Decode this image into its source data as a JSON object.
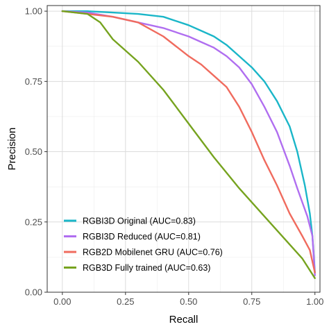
{
  "chart_data": {
    "type": "line",
    "title": "",
    "xlabel": "Recall",
    "ylabel": "Precision",
    "xlim": [
      -0.06,
      1.02
    ],
    "ylim": [
      0.0,
      1.02
    ],
    "x_ticks": [
      0.0,
      0.25,
      0.5,
      0.75,
      1.0
    ],
    "x_tick_labels": [
      "0.00",
      "0.25",
      "0.50",
      "0.75",
      "1.00"
    ],
    "y_ticks": [
      0.0,
      0.25,
      0.5,
      0.75,
      1.0
    ],
    "y_tick_labels": [
      "0.00",
      "0.25",
      "0.50",
      "0.75",
      "1.00"
    ],
    "grid": true,
    "legend_position": "bottom-left",
    "series": [
      {
        "name": "RGBI3D Original (AUC=0.83)",
        "color": "#1ab6c8",
        "points": [
          [
            0.0,
            1.0
          ],
          [
            0.1,
            1.0
          ],
          [
            0.2,
            0.995
          ],
          [
            0.3,
            0.99
          ],
          [
            0.4,
            0.98
          ],
          [
            0.5,
            0.95
          ],
          [
            0.55,
            0.93
          ],
          [
            0.6,
            0.91
          ],
          [
            0.65,
            0.88
          ],
          [
            0.7,
            0.84
          ],
          [
            0.75,
            0.8
          ],
          [
            0.8,
            0.75
          ],
          [
            0.85,
            0.68
          ],
          [
            0.9,
            0.59
          ],
          [
            0.93,
            0.5
          ],
          [
            0.96,
            0.38
          ],
          [
            0.98,
            0.28
          ],
          [
            0.99,
            0.2
          ],
          [
            1.0,
            0.07
          ]
        ]
      },
      {
        "name": "RGBI3D Reduced (AUC=0.81)",
        "color": "#b06ef0",
        "points": [
          [
            0.0,
            1.0
          ],
          [
            0.1,
            0.995
          ],
          [
            0.2,
            0.98
          ],
          [
            0.3,
            0.96
          ],
          [
            0.4,
            0.94
          ],
          [
            0.5,
            0.91
          ],
          [
            0.55,
            0.89
          ],
          [
            0.6,
            0.87
          ],
          [
            0.65,
            0.84
          ],
          [
            0.7,
            0.8
          ],
          [
            0.75,
            0.74
          ],
          [
            0.8,
            0.66
          ],
          [
            0.85,
            0.57
          ],
          [
            0.9,
            0.45
          ],
          [
            0.93,
            0.37
          ],
          [
            0.95,
            0.32
          ],
          [
            0.97,
            0.27
          ],
          [
            0.99,
            0.2
          ],
          [
            1.0,
            0.06
          ]
        ]
      },
      {
        "name": "RGB2D Mobilenet GRU (AUC=0.76)",
        "color": "#f06b5e",
        "points": [
          [
            0.0,
            1.0
          ],
          [
            0.1,
            0.99
          ],
          [
            0.2,
            0.98
          ],
          [
            0.3,
            0.96
          ],
          [
            0.4,
            0.91
          ],
          [
            0.5,
            0.84
          ],
          [
            0.55,
            0.81
          ],
          [
            0.6,
            0.77
          ],
          [
            0.65,
            0.73
          ],
          [
            0.7,
            0.66
          ],
          [
            0.75,
            0.57
          ],
          [
            0.8,
            0.47
          ],
          [
            0.85,
            0.38
          ],
          [
            0.9,
            0.28
          ],
          [
            0.95,
            0.2
          ],
          [
            0.98,
            0.15
          ],
          [
            1.0,
            0.07
          ]
        ]
      },
      {
        "name": "RGB3D Fully trained (AUC=0.63)",
        "color": "#76a31f",
        "points": [
          [
            0.0,
            1.0
          ],
          [
            0.1,
            0.99
          ],
          [
            0.15,
            0.96
          ],
          [
            0.2,
            0.9
          ],
          [
            0.3,
            0.82
          ],
          [
            0.4,
            0.72
          ],
          [
            0.5,
            0.6
          ],
          [
            0.6,
            0.48
          ],
          [
            0.7,
            0.37
          ],
          [
            0.8,
            0.27
          ],
          [
            0.9,
            0.17
          ],
          [
            0.95,
            0.12
          ],
          [
            1.0,
            0.05
          ]
        ]
      }
    ]
  }
}
